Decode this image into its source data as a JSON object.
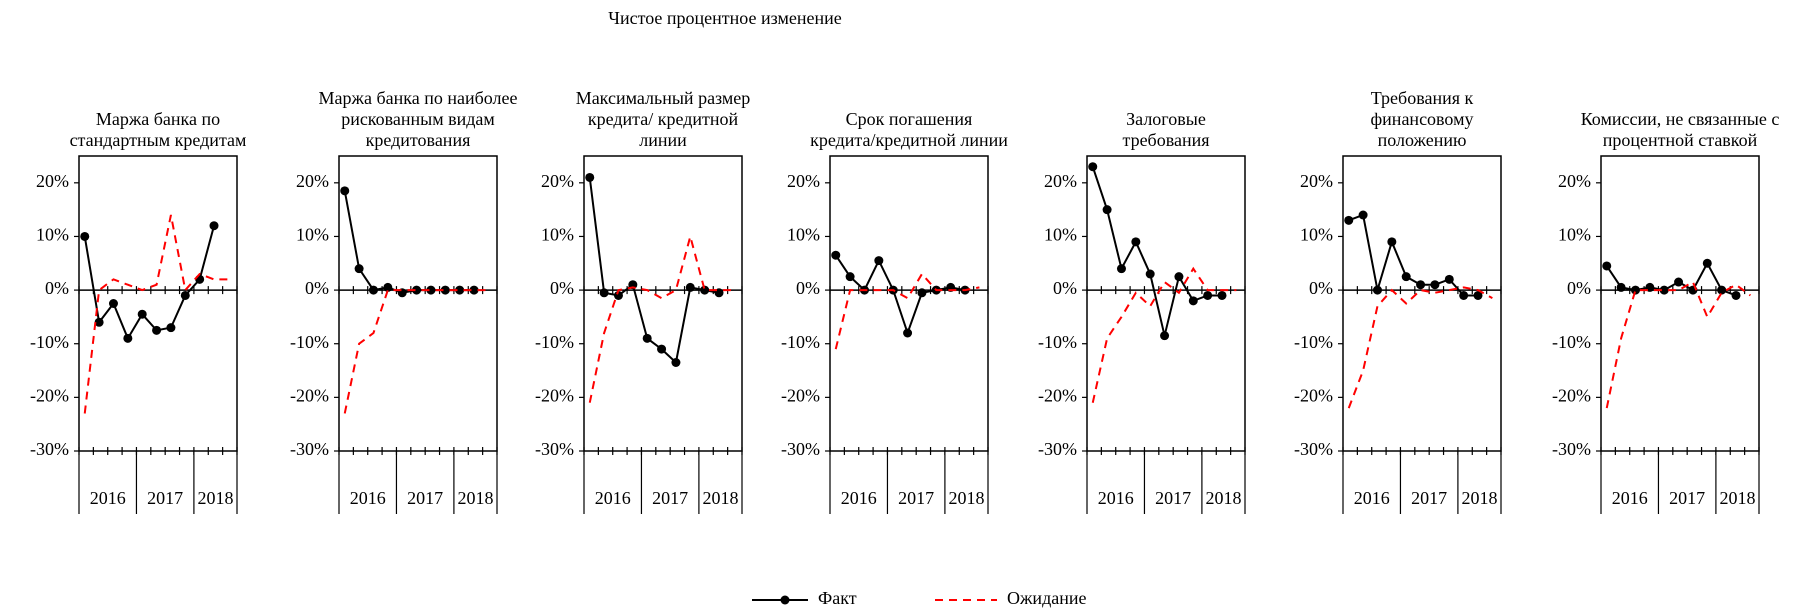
{
  "title": "Чистое процентное изменение",
  "chart_data": [
    {
      "type": "line",
      "title": [
        "Маржа банка по",
        "стандартным кредитам"
      ],
      "categories": [
        "2016",
        null,
        null,
        null,
        "2017",
        null,
        null,
        null,
        "2018",
        null,
        null
      ],
      "series": [
        {
          "name": "Факт",
          "color": "#000000",
          "values": [
            10,
            -6,
            -2.5,
            -9,
            -4.5,
            -7.5,
            -7,
            -1,
            2,
            12,
            null
          ]
        },
        {
          "name": "Ожидание",
          "color": "#ff0000",
          "values": [
            -23,
            0,
            2,
            1,
            0,
            1,
            14,
            0,
            3,
            2,
            2
          ]
        }
      ],
      "ylim": [
        -30,
        25
      ],
      "yticks": [
        {
          "value": -30,
          "label": "-30%"
        },
        {
          "value": -20,
          "label": "-20%"
        },
        {
          "value": -10,
          "label": "-10%"
        },
        {
          "value": 0,
          "label": "0%"
        },
        {
          "value": 10,
          "label": "10%"
        },
        {
          "value": 20,
          "label": "20%"
        }
      ]
    },
    {
      "type": "line",
      "title": [
        "Маржа банка по наиболее",
        "рискованным видам",
        "кредитования"
      ],
      "categories": [
        "2016",
        null,
        null,
        null,
        "2017",
        null,
        null,
        null,
        "2018",
        null,
        null
      ],
      "series": [
        {
          "name": "Факт",
          "color": "#000000",
          "values": [
            18.5,
            4,
            0,
            0.5,
            -0.5,
            0,
            0,
            0,
            0,
            0,
            null
          ]
        },
        {
          "name": "Ожидание",
          "color": "#ff0000",
          "values": [
            -23,
            -10,
            -8,
            0,
            0,
            0,
            0,
            0,
            0,
            0,
            0
          ]
        }
      ],
      "ylim": [
        -30,
        25
      ],
      "yticks": [
        {
          "value": -30,
          "label": "-30%"
        },
        {
          "value": -20,
          "label": "-20%"
        },
        {
          "value": -10,
          "label": "-10%"
        },
        {
          "value": 0,
          "label": "0%"
        },
        {
          "value": 10,
          "label": "10%"
        },
        {
          "value": 20,
          "label": "20%"
        }
      ]
    },
    {
      "type": "line",
      "title": [
        "Максимальный размер",
        "кредита/ кредитной",
        "линии"
      ],
      "categories": [
        "2016",
        null,
        null,
        null,
        "2017",
        null,
        null,
        null,
        "2018",
        null,
        null
      ],
      "series": [
        {
          "name": "Факт",
          "color": "#000000",
          "values": [
            21,
            -0.5,
            -1,
            1,
            -9,
            -11,
            -13.5,
            0.5,
            0,
            -0.5,
            null
          ]
        },
        {
          "name": "Ожидание",
          "color": "#ff0000",
          "values": [
            -21,
            -8,
            0,
            0.5,
            0,
            -1.5,
            0,
            10,
            0,
            0,
            0
          ]
        }
      ],
      "ylim": [
        -30,
        25
      ],
      "yticks": [
        {
          "value": -30,
          "label": "-30%"
        },
        {
          "value": -20,
          "label": "-20%"
        },
        {
          "value": -10,
          "label": "-10%"
        },
        {
          "value": 0,
          "label": "0%"
        },
        {
          "value": 10,
          "label": "10%"
        },
        {
          "value": 20,
          "label": "20%"
        }
      ]
    },
    {
      "type": "line",
      "title": [
        "Срок погашения",
        "кредита/кредитной линии"
      ],
      "categories": [
        "2016",
        null,
        null,
        null,
        "2017",
        null,
        null,
        null,
        "2018",
        null,
        null
      ],
      "series": [
        {
          "name": "Факт",
          "color": "#000000",
          "values": [
            6.5,
            2.5,
            0,
            5.5,
            0,
            -8,
            -0.5,
            0,
            0.5,
            0,
            null
          ]
        },
        {
          "name": "Ожидание",
          "color": "#ff0000",
          "values": [
            -11,
            0,
            0,
            0,
            0,
            -1.5,
            3,
            0,
            0,
            0,
            0.5
          ]
        }
      ],
      "ylim": [
        -30,
        25
      ],
      "yticks": [
        {
          "value": -30,
          "label": "-30%"
        },
        {
          "value": -20,
          "label": "-20%"
        },
        {
          "value": -10,
          "label": "-10%"
        },
        {
          "value": 0,
          "label": "0%"
        },
        {
          "value": 10,
          "label": "10%"
        },
        {
          "value": 20,
          "label": "20%"
        }
      ]
    },
    {
      "type": "line",
      "title": [
        "Залоговые",
        "требования"
      ],
      "categories": [
        "2016",
        null,
        null,
        null,
        "2017",
        null,
        null,
        null,
        "2018",
        null,
        null
      ],
      "series": [
        {
          "name": "Факт",
          "color": "#000000",
          "values": [
            23,
            15,
            4,
            9,
            3,
            -8.5,
            2.5,
            -2,
            -1,
            -1,
            null
          ]
        },
        {
          "name": "Ожидание",
          "color": "#ff0000",
          "values": [
            -21,
            -9,
            -5,
            -0.5,
            -3,
            1.5,
            -0.5,
            4,
            0,
            0,
            0
          ]
        }
      ],
      "ylim": [
        -30,
        25
      ],
      "yticks": [
        {
          "value": -30,
          "label": "-30%"
        },
        {
          "value": -20,
          "label": "-20%"
        },
        {
          "value": -10,
          "label": "-10%"
        },
        {
          "value": 0,
          "label": "0%"
        },
        {
          "value": 10,
          "label": "10%"
        },
        {
          "value": 20,
          "label": "20%"
        }
      ]
    },
    {
      "type": "line",
      "title": [
        "Требования к",
        "финансовому",
        "положению"
      ],
      "categories": [
        "2016",
        null,
        null,
        null,
        "2017",
        null,
        null,
        null,
        "2018",
        null,
        null
      ],
      "series": [
        {
          "name": "Факт",
          "color": "#000000",
          "values": [
            13,
            14,
            0,
            9,
            2.5,
            1,
            1,
            2,
            -1,
            -1,
            null
          ]
        },
        {
          "name": "Ожидание",
          "color": "#ff0000",
          "values": [
            -22,
            -15,
            -3,
            0,
            -2.5,
            0,
            -0.5,
            0,
            0.5,
            0,
            -1.5
          ]
        }
      ],
      "ylim": [
        -30,
        25
      ],
      "yticks": [
        {
          "value": -30,
          "label": "-30%"
        },
        {
          "value": -20,
          "label": "-20%"
        },
        {
          "value": -10,
          "label": "-10%"
        },
        {
          "value": 0,
          "label": "0%"
        },
        {
          "value": 10,
          "label": "10%"
        },
        {
          "value": 20,
          "label": "20%"
        }
      ]
    },
    {
      "type": "line",
      "title": [
        "Комиссии, не связанные с",
        "процентной ставкой"
      ],
      "categories": [
        "2016",
        null,
        null,
        null,
        "2017",
        null,
        null,
        null,
        "2018",
        null,
        null
      ],
      "series": [
        {
          "name": "Факт",
          "color": "#000000",
          "values": [
            4.5,
            0.5,
            0,
            0.5,
            0,
            1.5,
            0,
            5,
            0,
            -1,
            null
          ]
        },
        {
          "name": "Ожидание",
          "color": "#ff0000",
          "values": [
            -22,
            -9,
            0,
            0,
            0,
            0,
            1.5,
            -5,
            -0.5,
            1,
            -1
          ]
        }
      ],
      "ylim": [
        -30,
        25
      ],
      "yticks": [
        {
          "value": -30,
          "label": "-30%"
        },
        {
          "value": -20,
          "label": "-20%"
        },
        {
          "value": -10,
          "label": "-10%"
        },
        {
          "value": 0,
          "label": "0%"
        },
        {
          "value": 10,
          "label": "10%"
        },
        {
          "value": 20,
          "label": "20%"
        }
      ]
    }
  ]
}
